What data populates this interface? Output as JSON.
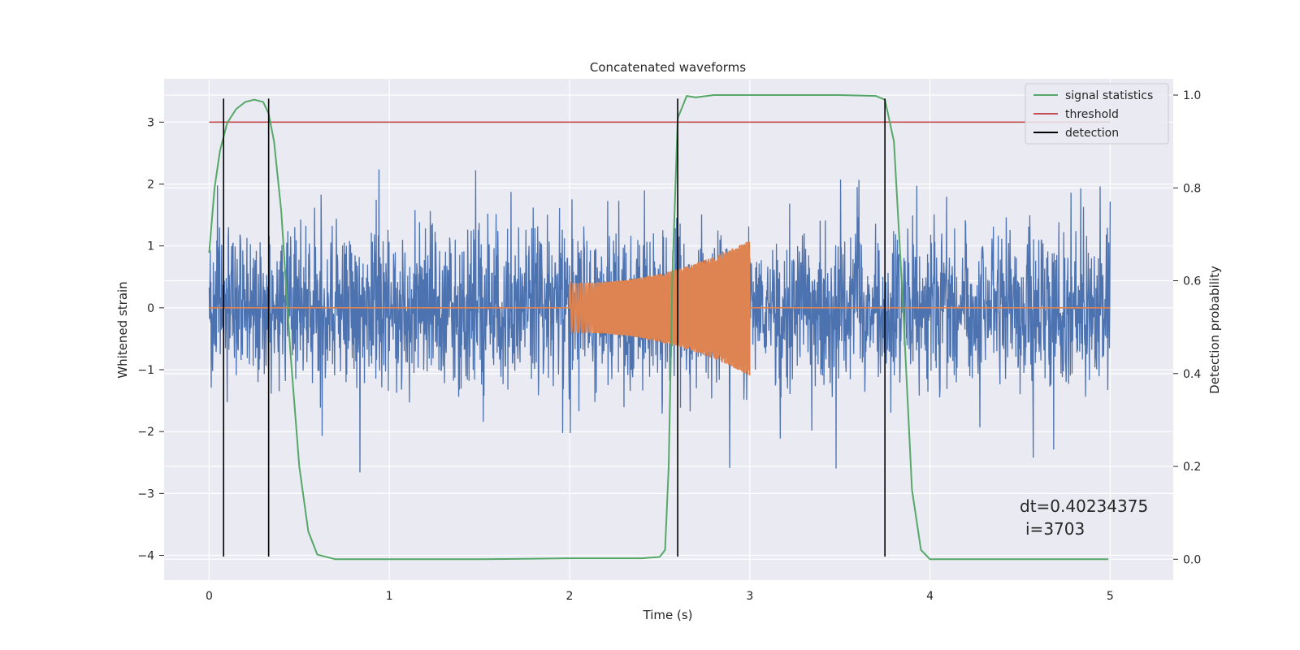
{
  "chart_data": {
    "type": "line",
    "title": "Concatenated waveforms",
    "xlabel": "Time (s)",
    "ylabel": "Whitened strain",
    "y2label": "Detection probability",
    "xlim": [
      -0.25,
      5.35
    ],
    "ylim": [
      -4.4,
      3.7
    ],
    "y2lim": [
      -0.045,
      1.035
    ],
    "xticks": [
      0,
      1,
      2,
      3,
      4,
      5
    ],
    "yticks": [
      3,
      2,
      1,
      0,
      -1,
      -2,
      -3,
      -4
    ],
    "ytick_labels": [
      "3",
      "2",
      "1",
      "0",
      "−1",
      "−2",
      "−3",
      "−4"
    ],
    "y2ticks": [
      1.0,
      0.8,
      0.6,
      0.4,
      0.2,
      0.0
    ],
    "y2tick_labels": [
      "1.0",
      "0.8",
      "0.6",
      "0.4",
      "0.2",
      "0.0"
    ],
    "grid": true,
    "legend_position": "top-right",
    "series": [
      {
        "name": "",
        "kind": "noise",
        "axis": "left",
        "color": "#4c72b0",
        "x_range": [
          0,
          5
        ],
        "approx_std": 0.65
      },
      {
        "name": "",
        "kind": "chirp",
        "axis": "left",
        "color": "#dd8452",
        "x_range": [
          2.0,
          3.0
        ],
        "amplitude_start": 0.4,
        "amplitude_end": 1.1,
        "baseline": 0
      },
      {
        "name": "signal statistics",
        "axis": "right",
        "color": "#55a868",
        "x": [
          0,
          0.03,
          0.06,
          0.1,
          0.15,
          0.2,
          0.25,
          0.3,
          0.33,
          0.36,
          0.4,
          0.45,
          0.5,
          0.55,
          0.6,
          0.7,
          1.0,
          1.5,
          2.0,
          2.4,
          2.5,
          2.53,
          2.55,
          2.57,
          2.6,
          2.65,
          2.7,
          2.8,
          3.0,
          3.5,
          3.7,
          3.75,
          3.8,
          3.85,
          3.9,
          3.95,
          4.0,
          4.5,
          4.99
        ],
        "y": [
          0.66,
          0.8,
          0.88,
          0.94,
          0.97,
          0.985,
          0.99,
          0.985,
          0.96,
          0.9,
          0.75,
          0.45,
          0.2,
          0.06,
          0.01,
          0.0,
          0.0,
          0.0,
          0.002,
          0.002,
          0.005,
          0.02,
          0.2,
          0.6,
          0.95,
          0.998,
          0.995,
          1.0,
          1.0,
          1.0,
          0.998,
          0.99,
          0.9,
          0.55,
          0.15,
          0.02,
          0.0,
          0.0,
          0.0
        ]
      },
      {
        "name": "threshold",
        "axis": "left",
        "color": "#c44e52",
        "x": [
          0,
          5
        ],
        "y": [
          3.0,
          3.0
        ]
      },
      {
        "name": "detection",
        "axis": "vertical",
        "color": "#000000",
        "x": [
          0.08,
          0.33,
          2.6,
          3.75
        ],
        "y_from": -4.02,
        "y_to": 3.38
      }
    ],
    "annotation": [
      "dt=0.40234375",
      "i=3703"
    ]
  }
}
